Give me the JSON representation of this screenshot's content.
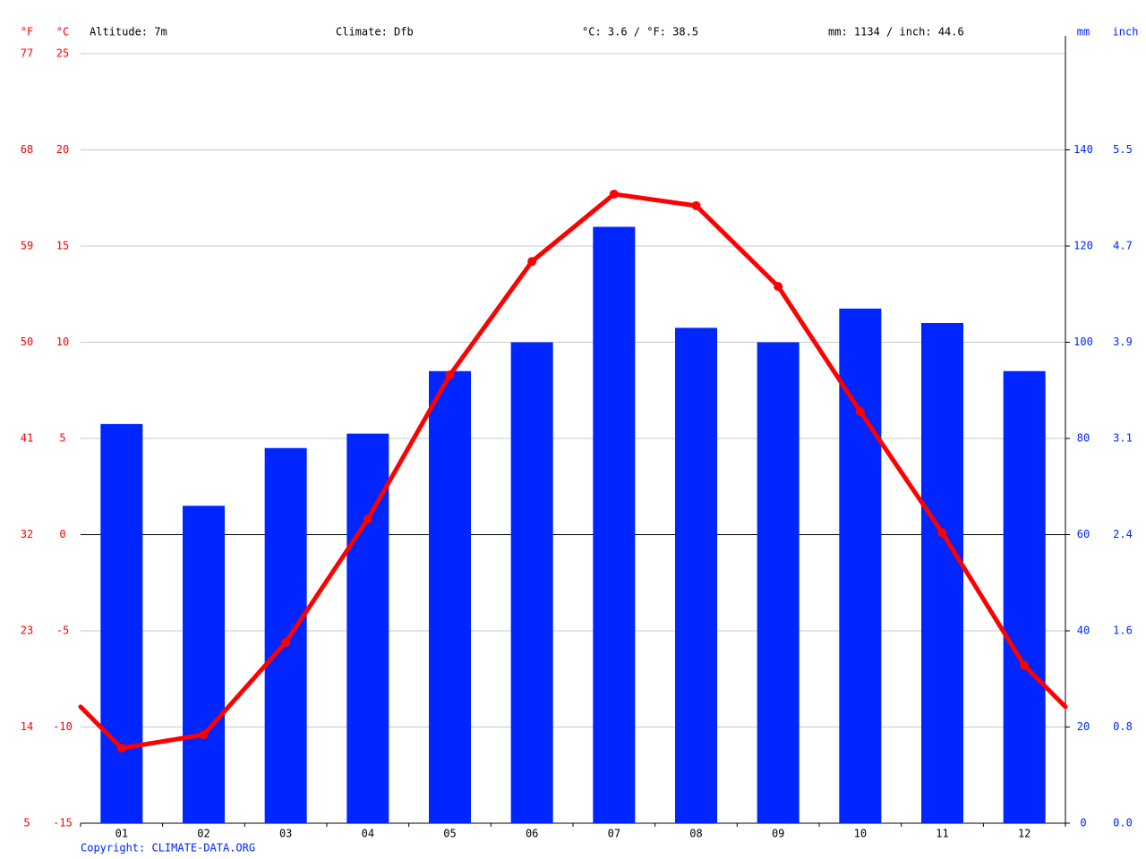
{
  "chart_data": {
    "type": "combo",
    "header": [
      "Altitude: 7m",
      "Climate: Dfb",
      "°C: 3.6 / °F: 38.5",
      "mm: 1134 / inch: 44.6"
    ],
    "y_units": [
      "°F",
      "°C"
    ],
    "y2_units": [
      "mm",
      "inch"
    ],
    "footer": "Copyright: CLIMATE-DATA.ORG",
    "categories": [
      "01",
      "02",
      "03",
      "04",
      "05",
      "06",
      "07",
      "08",
      "09",
      "10",
      "11",
      "12"
    ],
    "series": [
      {
        "type": "bar",
        "axis": "y2",
        "color": "#0026ff",
        "values": [
          83,
          66,
          78,
          81,
          94,
          100,
          124,
          103,
          100,
          107,
          104,
          94
        ]
      },
      {
        "type": "line",
        "color": "#ff0000",
        "values": [
          -11.1,
          -10.4,
          -5.6,
          0.8,
          8.3,
          14.2,
          17.7,
          17.1,
          12.9,
          6.4,
          0.1,
          -6.8
        ]
      }
    ],
    "ylim": [
      -15,
      25
    ],
    "yticks": [
      -15,
      -10,
      -5,
      0,
      5,
      10,
      15,
      20,
      25
    ],
    "fticks": [
      {
        "value": -15,
        "label": "5"
      },
      {
        "value": -10,
        "label": "14"
      },
      {
        "value": -5,
        "label": "23"
      },
      {
        "value": 0,
        "label": "32"
      },
      {
        "value": 5,
        "label": "41"
      },
      {
        "value": 10,
        "label": "50"
      },
      {
        "value": 15,
        "label": "59"
      },
      {
        "value": 20,
        "label": "68"
      },
      {
        "value": 25,
        "label": "77"
      }
    ],
    "y2lim": [
      0,
      160
    ],
    "y2ticks": [
      0,
      20,
      40,
      60,
      80,
      100,
      120,
      140
    ],
    "inchticks": [
      {
        "value": 0,
        "label": "0.0"
      },
      {
        "value": 20,
        "label": "0.8"
      },
      {
        "value": 40,
        "label": "1.6"
      },
      {
        "value": 60,
        "label": "2.4"
      },
      {
        "value": 80,
        "label": "3.1"
      },
      {
        "value": 100,
        "label": "3.9"
      },
      {
        "value": 120,
        "label": "4.7"
      },
      {
        "value": 140,
        "label": "5.5"
      }
    ],
    "grid": true
  }
}
